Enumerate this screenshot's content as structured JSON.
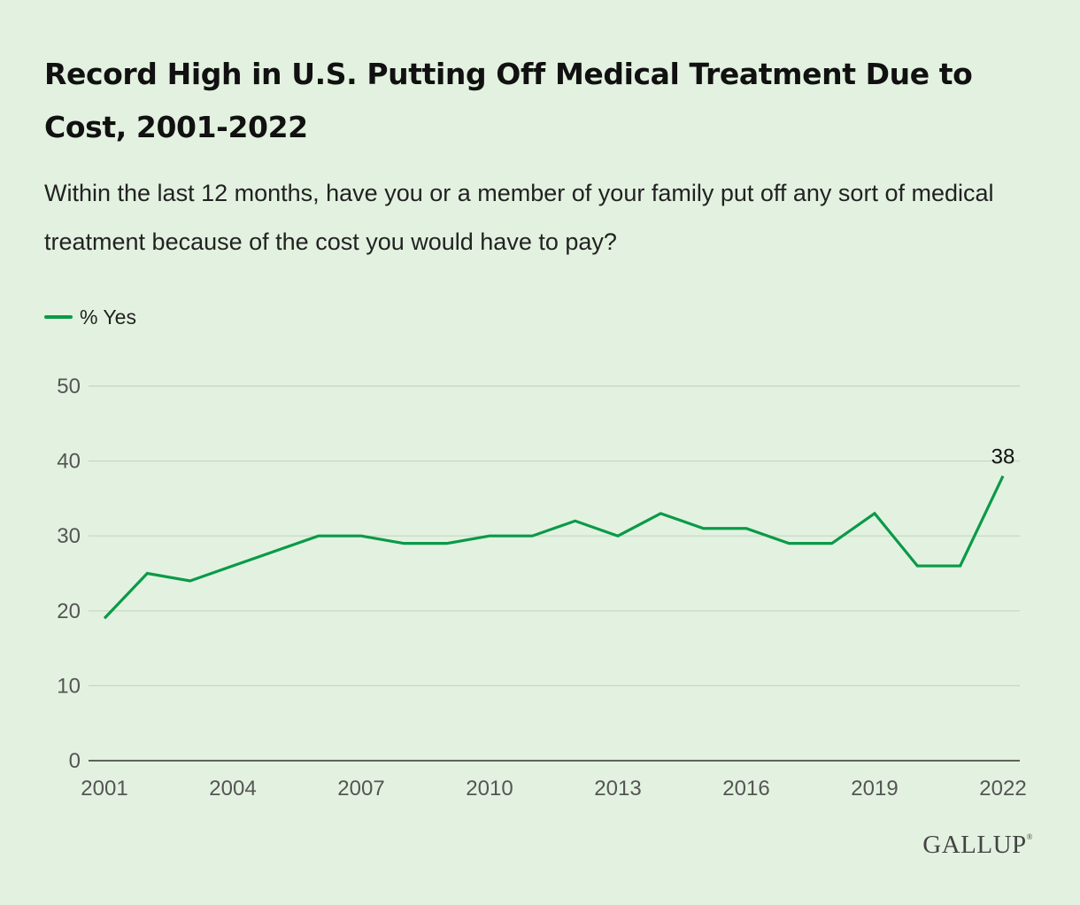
{
  "title": "Record High in U.S. Putting Off Medical Treatment Due to Cost, 2001-2022",
  "subtitle": "Within the last 12 months, have you or a member of your family put off any sort of medical treatment because of the cost you would have to pay?",
  "logo": "GALLUP",
  "colors": {
    "background": "#e3f2e0",
    "series": "#0a9a48",
    "grid": "#c5d6c2",
    "axis": "#333333"
  },
  "chart_data": {
    "type": "line",
    "x": [
      2001,
      2002,
      2003,
      2004,
      2005,
      2006,
      2007,
      2008,
      2009,
      2010,
      2011,
      2012,
      2013,
      2014,
      2015,
      2016,
      2017,
      2018,
      2019,
      2020,
      2021,
      2022
    ],
    "series": [
      {
        "name": "% Yes",
        "values": [
          19,
          25,
          24,
          26,
          28,
          30,
          30,
          29,
          29,
          30,
          30,
          32,
          30,
          33,
          31,
          31,
          29,
          29,
          33,
          26,
          26,
          38
        ]
      }
    ],
    "xticks": [
      "2001",
      "2004",
      "2007",
      "2010",
      "2013",
      "2016",
      "2019",
      "2022"
    ],
    "yticks": [
      "0",
      "10",
      "20",
      "30",
      "40",
      "50"
    ],
    "ylim": [
      0,
      50
    ],
    "xlim": [
      2001,
      2022
    ],
    "data_labels": [
      {
        "x": 2022,
        "value": 38,
        "text": "38"
      }
    ],
    "xlabel": "",
    "ylabel": "",
    "grid": true,
    "legend_position": "top-left"
  }
}
